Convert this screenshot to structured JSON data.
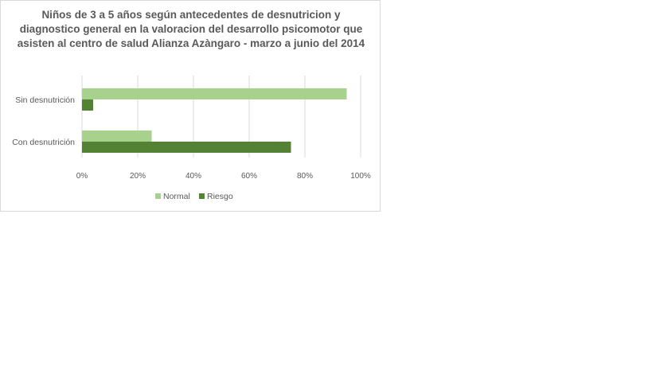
{
  "chart_data": {
    "type": "bar",
    "orientation": "horizontal",
    "title": "Niños de 3 a 5 años según antecedentes de desnutricion y diagnostico general en la valoracion del desarrollo psicomotor que asisten al centro de salud Alianza Azàngaro - marzo a junio del 2014",
    "categories": [
      "Sin desnutrición",
      "Con desnutrición"
    ],
    "series": [
      {
        "name": "Normal",
        "values": [
          95,
          25
        ],
        "color": "#a9d18e"
      },
      {
        "name": "Riesgo",
        "values": [
          4,
          75
        ],
        "color": "#548235"
      }
    ],
    "xlim": [
      0,
      100
    ],
    "x_ticks": [
      "0%",
      "20%",
      "40%",
      "60%",
      "80%",
      "100%"
    ],
    "xlabel": "",
    "ylabel": "",
    "grid": true,
    "legend_position": "bottom"
  }
}
